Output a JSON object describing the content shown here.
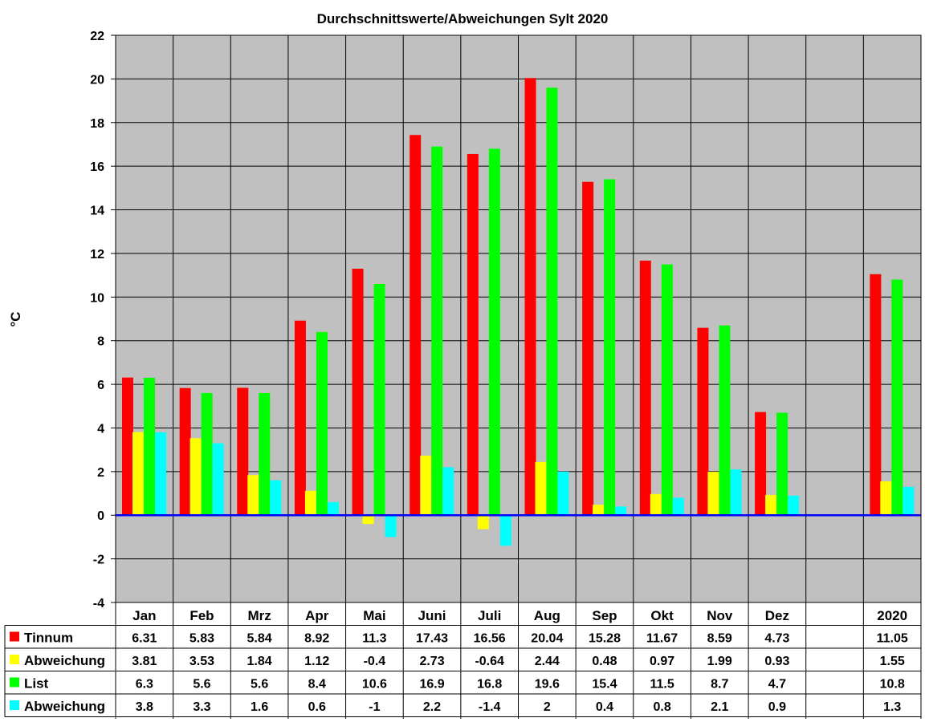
{
  "chart_data": {
    "type": "bar",
    "title": "Durchschnittswerte/Abweichungen Sylt 2020",
    "xlabel": "",
    "ylabel": "°C",
    "ylim": [
      -4,
      22
    ],
    "yticks": [
      "-4",
      "-2",
      "0",
      "2",
      "4",
      "6",
      "8",
      "10",
      "12",
      "14",
      "16",
      "18",
      "20",
      "22"
    ],
    "grid": true,
    "categories": [
      "Jan",
      "Feb",
      "Mrz",
      "Apr",
      "Mai",
      "Juni",
      "Juli",
      "Aug",
      "Sep",
      "Okt",
      "Nov",
      "Dez",
      "",
      "2020"
    ],
    "series": [
      {
        "name": "Tinnum",
        "color": "#ff0000",
        "values": [
          6.31,
          5.83,
          5.84,
          8.92,
          11.3,
          17.43,
          16.56,
          20.04,
          15.28,
          11.67,
          8.59,
          4.73,
          null,
          11.05
        ],
        "labels": [
          "6.31",
          "5.83",
          "5.84",
          "8.92",
          "11.3",
          "17.43",
          "16.56",
          "20.04",
          "15.28",
          "11.67",
          "8.59",
          "4.73",
          "",
          "11.05"
        ]
      },
      {
        "name": "Abweichung",
        "color": "#ffff00",
        "values": [
          3.81,
          3.53,
          1.84,
          1.12,
          -0.4,
          2.73,
          -0.64,
          2.44,
          0.48,
          0.97,
          1.99,
          0.93,
          null,
          1.55
        ],
        "labels": [
          "3.81",
          "3.53",
          "1.84",
          "1.12",
          "-0.4",
          "2.73",
          "-0.64",
          "2.44",
          "0.48",
          "0.97",
          "1.99",
          "0.93",
          "",
          "1.55"
        ]
      },
      {
        "name": "List",
        "color": "#00ff00",
        "values": [
          6.3,
          5.6,
          5.6,
          8.4,
          10.6,
          16.9,
          16.8,
          19.6,
          15.4,
          11.5,
          8.7,
          4.7,
          null,
          10.8
        ],
        "labels": [
          "6.3",
          "5.6",
          "5.6",
          "8.4",
          "10.6",
          "16.9",
          "16.8",
          "19.6",
          "15.4",
          "11.5",
          "8.7",
          "4.7",
          "",
          "10.8"
        ]
      },
      {
        "name": "Abweichung",
        "color": "#00ffff",
        "values": [
          3.8,
          3.3,
          1.6,
          0.6,
          -1,
          2.2,
          -1.4,
          2,
          0.4,
          0.8,
          2.1,
          0.9,
          null,
          1.3
        ],
        "labels": [
          "3.8",
          "3.3",
          "1.6",
          "0.6",
          "-1",
          "2.2",
          "-1.4",
          "2",
          "0.4",
          "0.8",
          "2.1",
          "0.9",
          "",
          "1.3"
        ]
      }
    ],
    "colors": {
      "plot_background": "#c0c0c0",
      "zero_line": "#0000ff",
      "grid": "#000000"
    }
  }
}
